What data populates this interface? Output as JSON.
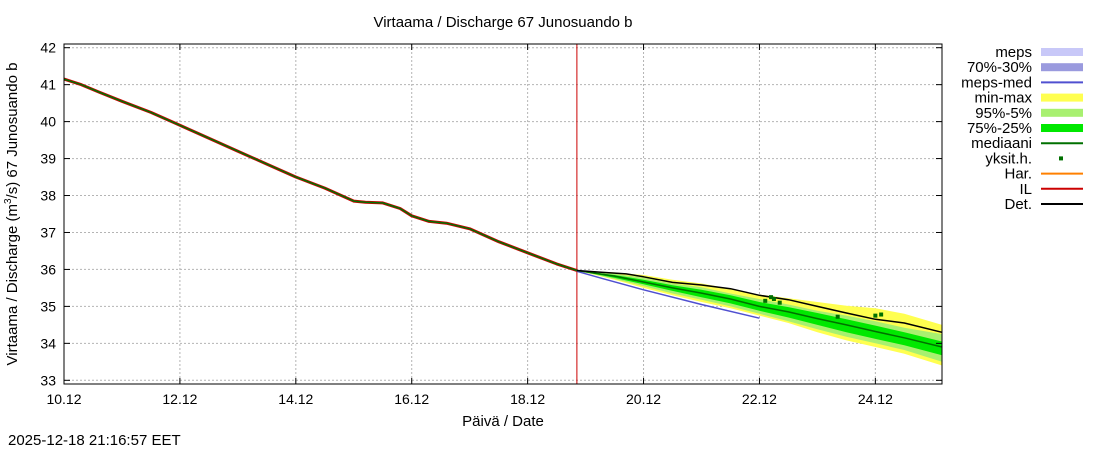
{
  "chart_data": {
    "type": "line",
    "title": "Virtaama / Discharge  67 Junosuando b",
    "xlabel": "Päivä / Date",
    "ylabel_main": "Virtaama / Discharge (m",
    "ylabel_sup": "3",
    "ylabel_tail": "/s)  67 Junosuando b",
    "timestamp": "2025-12-18 21:16:57 EET",
    "xlim": [
      0,
      15.15
    ],
    "ylim": [
      32.9,
      42.1
    ],
    "x_unit": "days since 10.12",
    "x_ticks": [
      {
        "x": 0,
        "label": "10.12"
      },
      {
        "x": 2,
        "label": "12.12"
      },
      {
        "x": 4,
        "label": "14.12"
      },
      {
        "x": 6,
        "label": "16.12"
      },
      {
        "x": 8,
        "label": "18.12"
      },
      {
        "x": 10,
        "label": "20.12"
      },
      {
        "x": 12,
        "label": "22.12"
      },
      {
        "x": 14,
        "label": "24.12"
      }
    ],
    "y_ticks": [
      33,
      34,
      35,
      36,
      37,
      38,
      39,
      40,
      41,
      42
    ],
    "grid": true,
    "forecast_start_x": 8.85,
    "colors": {
      "meps": "#c8c8f8",
      "p70_30": "#9a9ade",
      "meps_med": "#5050d0",
      "min_max": "#ffff50",
      "p95_5": "#a8f070",
      "p75_25": "#00e800",
      "mediaani": "#007000",
      "yksit": "#007000",
      "har": "#ff8000",
      "il": "#cc0000",
      "det": "#000000",
      "grid": "#b4b4b4"
    },
    "legend": [
      {
        "key": "meps",
        "label": "meps",
        "style": "band",
        "color": "#c8c8f8"
      },
      {
        "key": "p70_30",
        "label": "70%-30%",
        "style": "band",
        "color": "#9a9ade"
      },
      {
        "key": "meps_med",
        "label": "meps-med",
        "style": "line",
        "color": "#5050d0"
      },
      {
        "key": "min_max",
        "label": "min-max",
        "style": "band",
        "color": "#ffff50"
      },
      {
        "key": "p95_5",
        "label": "95%-5%",
        "style": "band",
        "color": "#a8f070"
      },
      {
        "key": "p75_25",
        "label": "75%-25%",
        "style": "band",
        "color": "#00e800"
      },
      {
        "key": "mediaani",
        "label": "mediaani",
        "style": "line",
        "color": "#007000"
      },
      {
        "key": "yksit",
        "label": "yksit.h.",
        "style": "dot",
        "color": "#007000"
      },
      {
        "key": "har",
        "label": "Har.",
        "style": "line",
        "color": "#ff8000"
      },
      {
        "key": "il",
        "label": "IL",
        "style": "line",
        "color": "#cc0000"
      },
      {
        "key": "det",
        "label": "Det.",
        "style": "line",
        "color": "#000000"
      }
    ],
    "series": {
      "observed": {
        "name": "Det. (observed)",
        "x": [
          0,
          0.3,
          0.6,
          1.0,
          1.5,
          2.0,
          2.5,
          3.0,
          3.5,
          4.0,
          4.5,
          5.0,
          5.2,
          5.5,
          5.8,
          6.0,
          6.3,
          6.6,
          7.0,
          7.5,
          8.0,
          8.5,
          8.85
        ],
        "y": [
          41.15,
          41.0,
          40.8,
          40.55,
          40.25,
          39.9,
          39.55,
          39.2,
          38.85,
          38.5,
          38.2,
          37.85,
          37.82,
          37.8,
          37.65,
          37.45,
          37.3,
          37.25,
          37.1,
          36.75,
          36.45,
          36.15,
          35.97
        ]
      },
      "meps_med": {
        "name": "meps-med",
        "x": [
          8.85,
          9.3,
          10.0,
          11.0,
          12.0
        ],
        "y": [
          35.95,
          35.75,
          35.45,
          35.05,
          34.68
        ]
      },
      "min_max": {
        "name": "min-max",
        "x": [
          8.85,
          9.5,
          10.0,
          10.5,
          11.0,
          11.5,
          12.0,
          12.5,
          13.0,
          13.5,
          14.0,
          14.5,
          15.15
        ],
        "upper": [
          35.97,
          35.92,
          35.85,
          35.72,
          35.62,
          35.48,
          35.32,
          35.22,
          35.12,
          35.02,
          34.95,
          34.8,
          34.5
        ],
        "lower": [
          35.97,
          35.72,
          35.5,
          35.3,
          35.12,
          34.95,
          34.75,
          34.55,
          34.3,
          34.08,
          33.9,
          33.72,
          33.4
        ]
      },
      "p95_5": {
        "name": "95%-5%",
        "x": [
          8.85,
          9.5,
          10.0,
          10.5,
          11.0,
          11.5,
          12.0,
          12.5,
          13.0,
          13.5,
          14.0,
          14.5,
          15.15
        ],
        "upper": [
          35.97,
          35.88,
          35.78,
          35.62,
          35.52,
          35.35,
          35.2,
          35.05,
          34.88,
          34.75,
          34.6,
          34.42,
          34.25
        ],
        "lower": [
          35.97,
          35.74,
          35.55,
          35.35,
          35.18,
          35.0,
          34.8,
          34.6,
          34.38,
          34.18,
          34.0,
          33.82,
          33.5
        ]
      },
      "p75_25": {
        "name": "75%-25%",
        "x": [
          8.85,
          9.5,
          10.0,
          10.5,
          11.0,
          11.5,
          12.0,
          12.5,
          13.0,
          13.5,
          14.0,
          14.5,
          15.15
        ],
        "upper": [
          35.97,
          35.85,
          35.72,
          35.57,
          35.45,
          35.3,
          35.12,
          34.98,
          34.82,
          34.65,
          34.48,
          34.3,
          34.05
        ],
        "lower": [
          35.97,
          35.77,
          35.6,
          35.42,
          35.25,
          35.08,
          34.88,
          34.7,
          34.5,
          34.3,
          34.12,
          33.95,
          33.68
        ]
      },
      "mediaani": {
        "name": "mediaani",
        "x": [
          8.85,
          9.5,
          10.0,
          10.5,
          11.0,
          11.5,
          12.0,
          12.5,
          13.0,
          13.5,
          14.0,
          14.5,
          15.15
        ],
        "y": [
          35.97,
          35.82,
          35.66,
          35.5,
          35.36,
          35.2,
          35.0,
          34.85,
          34.67,
          34.5,
          34.32,
          34.15,
          33.9
        ]
      },
      "det_forecast": {
        "name": "Det. (forecast)",
        "x": [
          8.85,
          9.3,
          9.7,
          10.0,
          10.5,
          11.0,
          11.5,
          12.0,
          12.5,
          13.0,
          13.5,
          14.0,
          14.5,
          15.15
        ],
        "y": [
          35.97,
          35.92,
          35.88,
          35.8,
          35.65,
          35.58,
          35.48,
          35.3,
          35.18,
          35.0,
          34.82,
          34.65,
          34.55,
          34.3
        ]
      },
      "yksit": {
        "name": "yksit.h.",
        "x": [
          12.1,
          12.2,
          12.25,
          12.35,
          13.35,
          14.0,
          14.1
        ],
        "y": [
          35.15,
          35.25,
          35.2,
          35.1,
          34.72,
          34.75,
          34.78
        ]
      }
    }
  }
}
